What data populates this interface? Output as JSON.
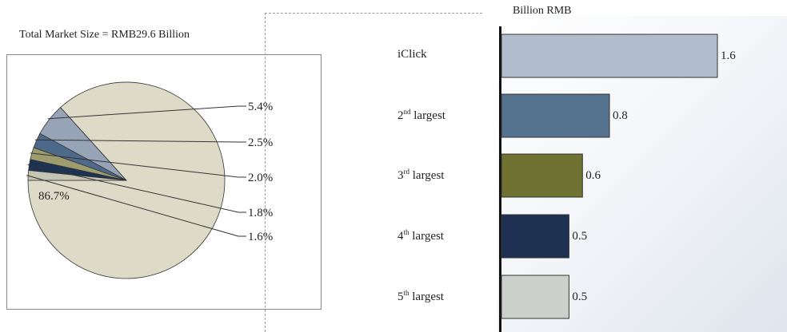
{
  "colors": {
    "pie": [
      "#dddbc8",
      "#97a4b8",
      "#4e6a8a",
      "#9c9c6e",
      "#1d3354",
      "#c4c5b2"
    ],
    "bars": [
      "#b1bdcc",
      "#55738f",
      "#707232",
      "#1e3153",
      "#cbd1ca"
    ],
    "stroke": "#333333"
  },
  "chart_data": [
    {
      "type": "pie",
      "title": "Total Market Size = RMB29.6 Billion",
      "slices": [
        {
          "value": 86.7,
          "label": "86.7%"
        },
        {
          "value": 5.4,
          "label": "5.4%"
        },
        {
          "value": 2.5,
          "label": "2.5%"
        },
        {
          "value": 2.0,
          "label": "2.0%"
        },
        {
          "value": 1.8,
          "label": "1.8%"
        },
        {
          "value": 1.6,
          "label": "1.6%"
        }
      ]
    },
    {
      "type": "bar",
      "orientation": "horizontal",
      "unit_label": "Billion RMB",
      "categories": [
        {
          "main": "iClick",
          "sup": "",
          "rest": ""
        },
        {
          "main": "2",
          "sup": "nd",
          "rest": " largest"
        },
        {
          "main": "3",
          "sup": "rd",
          "rest": " largest"
        },
        {
          "main": "4",
          "sup": "th",
          "rest": " largest"
        },
        {
          "main": "5",
          "sup": "th",
          "rest": " largest"
        }
      ],
      "values": [
        1.6,
        0.8,
        0.6,
        0.5,
        0.5
      ],
      "value_labels": [
        "1.6",
        "0.8",
        "0.6",
        "0.5",
        "0.5"
      ]
    }
  ]
}
